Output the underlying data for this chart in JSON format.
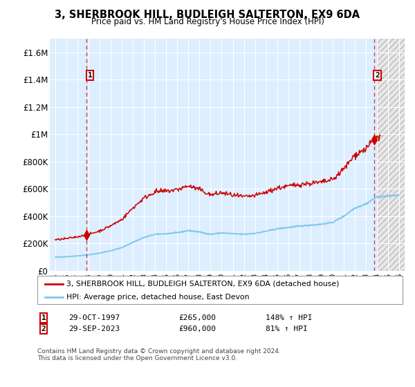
{
  "title": "3, SHERBROOK HILL, BUDLEIGH SALTERTON, EX9 6DA",
  "subtitle": "Price paid vs. HM Land Registry's House Price Index (HPI)",
  "sale1_date_label": "29-OCT-1997",
  "sale1_price": 265000,
  "sale1_hpi_pct": "148% ↑ HPI",
  "sale1_year": 1997.83,
  "sale2_date_label": "29-SEP-2023",
  "sale2_price": 960000,
  "sale2_hpi_pct": "81% ↑ HPI",
  "sale2_year": 2023.75,
  "hpi_color": "#7ec8f0",
  "price_color": "#cc0000",
  "bg_color": "#ddeeff",
  "xlabel_years": [
    1995,
    1996,
    1997,
    1998,
    1999,
    2000,
    2001,
    2002,
    2003,
    2004,
    2005,
    2006,
    2007,
    2008,
    2009,
    2010,
    2011,
    2012,
    2013,
    2014,
    2015,
    2016,
    2017,
    2018,
    2019,
    2020,
    2021,
    2022,
    2023,
    2024,
    2025,
    2026
  ],
  "xlim": [
    1994.5,
    2026.5
  ],
  "ylim": [
    0,
    1700000
  ],
  "yticks": [
    0,
    200000,
    400000,
    600000,
    800000,
    1000000,
    1200000,
    1400000,
    1600000
  ],
  "ytick_labels": [
    "£0",
    "£200K",
    "£400K",
    "£600K",
    "£800K",
    "£1M",
    "£1.2M",
    "£1.4M",
    "£1.6M"
  ],
  "footer": "Contains HM Land Registry data © Crown copyright and database right 2024.\nThis data is licensed under the Open Government Licence v3.0.",
  "legend_line1": "3, SHERBROOK HILL, BUDLEIGH SALTERTON, EX9 6DA (detached house)",
  "legend_line2": "HPI: Average price, detached house, East Devon"
}
